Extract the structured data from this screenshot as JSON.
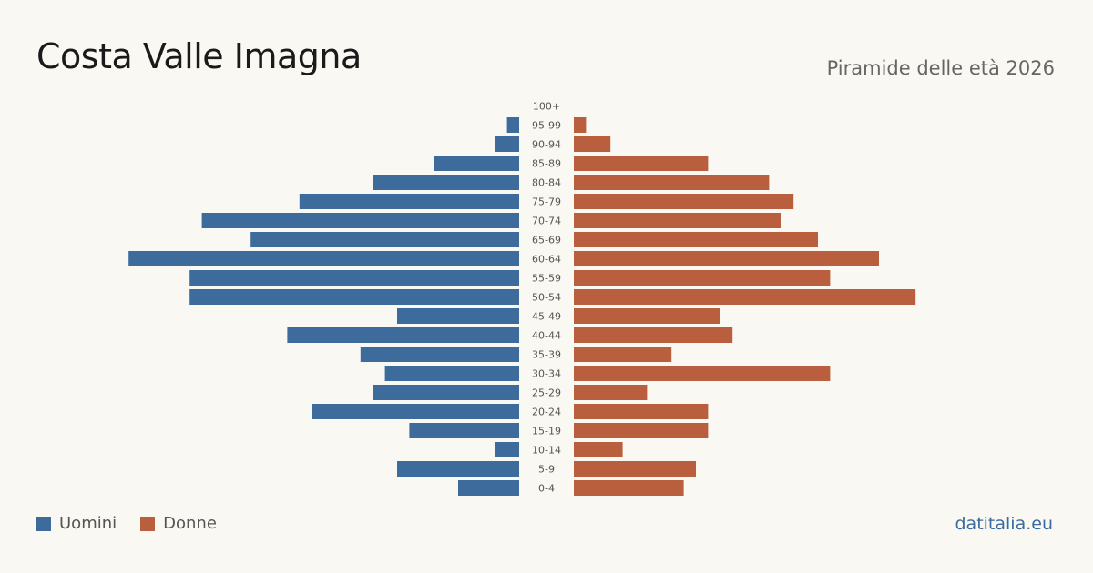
{
  "header": {
    "title": "Costa Valle Imagna",
    "subtitle": "Piramide delle età 2026"
  },
  "legend": {
    "male_label": "Uomini",
    "female_label": "Donne"
  },
  "footer": {
    "brand": "datitalia.eu"
  },
  "colors": {
    "male": "#3c6b9c",
    "female": "#b95f3d"
  },
  "chart_data": {
    "type": "bar",
    "orientation": "horizontal-pyramid",
    "categories": [
      "100+",
      "95-99",
      "90-94",
      "85-89",
      "80-84",
      "75-79",
      "70-74",
      "65-69",
      "60-64",
      "55-59",
      "50-54",
      "45-49",
      "40-44",
      "35-39",
      "30-34",
      "25-29",
      "20-24",
      "15-19",
      "10-14",
      "5-9",
      "0-4"
    ],
    "series": [
      {
        "name": "Uomini",
        "values": [
          0,
          1,
          2,
          7,
          12,
          18,
          26,
          22,
          32,
          27,
          27,
          10,
          19,
          13,
          11,
          12,
          17,
          9,
          2,
          10,
          5
        ]
      },
      {
        "name": "Donne",
        "values": [
          0,
          1,
          3,
          11,
          16,
          18,
          17,
          20,
          25,
          21,
          28,
          12,
          13,
          8,
          21,
          6,
          11,
          11,
          4,
          10,
          9
        ]
      }
    ],
    "grid": false,
    "legend_position": "bottom-left"
  }
}
